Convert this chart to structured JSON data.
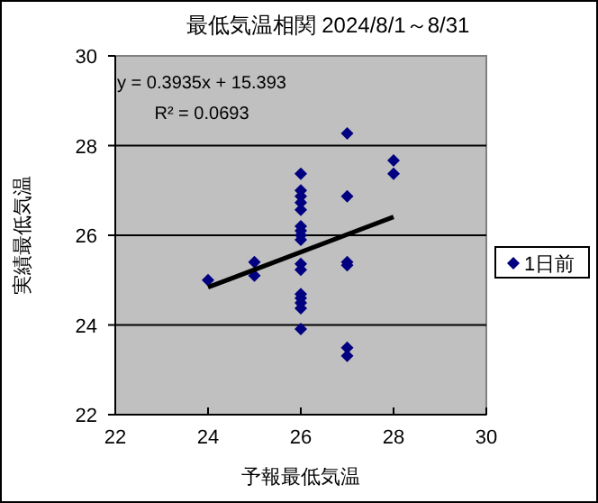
{
  "chart_data": {
    "type": "scatter",
    "title": "最低気温相関 2024/8/1～8/31",
    "xlabel": "予報最低気温",
    "ylabel": "実績最低気温",
    "xlim": [
      22,
      30
    ],
    "xticks": [
      22,
      24,
      26,
      28,
      30
    ],
    "ylim": [
      22,
      30
    ],
    "yticks": [
      22,
      24,
      26,
      28,
      30
    ],
    "grid": "y",
    "legend": "right",
    "annotations": [
      "y = 0.3935x + 15.393",
      "R² = 0.0693"
    ],
    "series": [
      {
        "name": "1日前",
        "color": "#000080",
        "marker": "diamond",
        "x": [
          24,
          25,
          25,
          26,
          26,
          26,
          26,
          26,
          26,
          26,
          26,
          26,
          26,
          26,
          26,
          26,
          26,
          26,
          26,
          27,
          27,
          27,
          27,
          27,
          27,
          28,
          28
        ],
        "values": [
          25.0,
          25.4,
          25.1,
          27.37,
          27.0,
          26.87,
          26.73,
          26.57,
          26.2,
          26.1,
          26.0,
          25.9,
          25.36,
          25.23,
          24.69,
          24.6,
          24.49,
          24.37,
          23.91,
          28.27,
          26.87,
          25.4,
          25.33,
          23.49,
          23.31,
          27.67,
          27.37
        ]
      },
      {
        "type": "line",
        "color": "#000000",
        "x": [
          24,
          28
        ],
        "values": [
          24.84,
          26.41
        ]
      }
    ]
  }
}
